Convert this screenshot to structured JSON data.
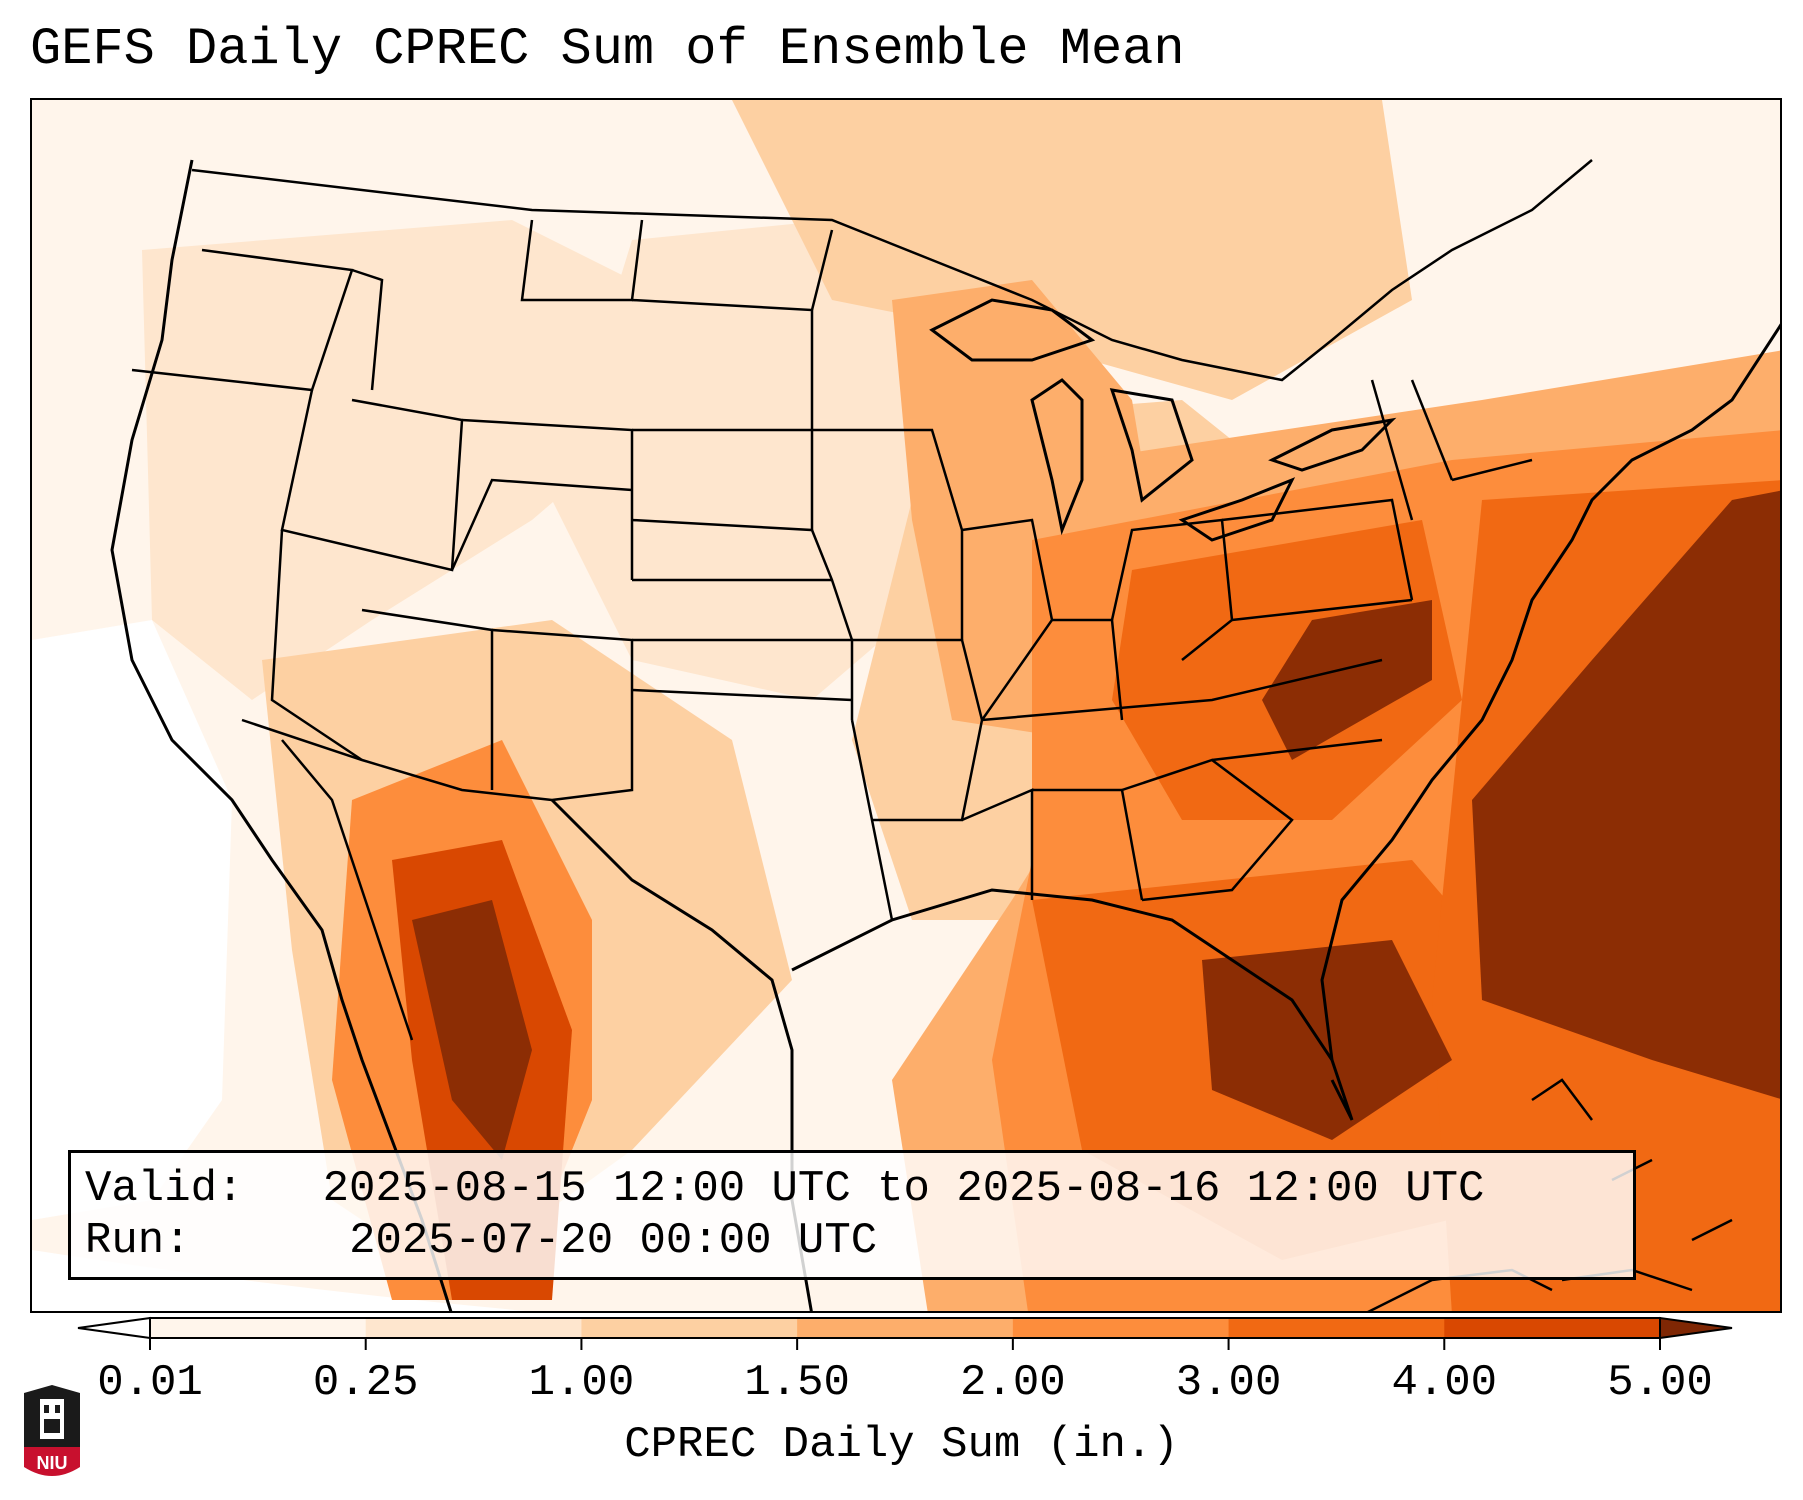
{
  "title": "GEFS Daily CPREC Sum of Ensemble Mean",
  "info": {
    "valid_label": "Valid:",
    "valid_value": "2025-08-15 12:00 UTC to 2025-08-16 12:00 UTC",
    "run_label": "Run:",
    "run_value": "2025-07-20 00:00 UTC"
  },
  "colorbar": {
    "label": "CPREC Daily Sum (in.)",
    "ticks": [
      "0.01",
      "0.25",
      "1.00",
      "1.50",
      "2.00",
      "3.00",
      "4.00",
      "5.00"
    ],
    "colors": [
      "#fff5eb",
      "#fee6ce",
      "#fdd0a2",
      "#fdae6b",
      "#fd8d3c",
      "#f16913",
      "#d94801",
      "#8c2d04"
    ],
    "under_color": "#ffffff",
    "over_color": "#7f2704",
    "extend": "both"
  },
  "logo": {
    "text": "NIU",
    "colors": {
      "red": "#c8102e",
      "black": "#1a1a1a"
    }
  },
  "map": {
    "projection": "Lambert conformal, CONUS",
    "land_outline_color": "#000000",
    "ocean_base_color": "#ffffff"
  }
}
